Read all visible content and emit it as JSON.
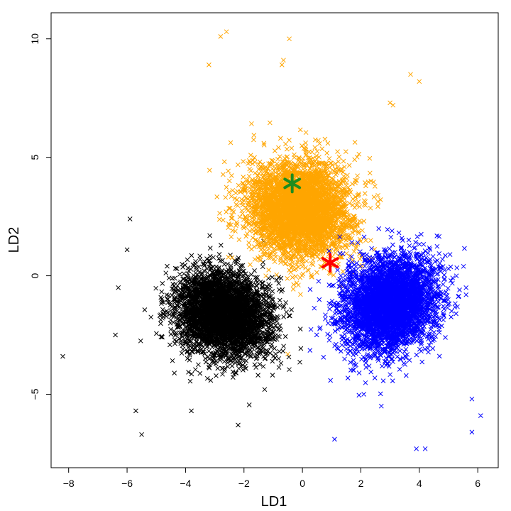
{
  "chart_data": {
    "type": "scatter",
    "marker": "x",
    "xlabel": "LD1",
    "ylabel": "LD2",
    "xlim": [
      -8.6,
      6.7
    ],
    "ylim": [
      -8.1,
      11.1
    ],
    "xticks": [
      -8,
      -6,
      -4,
      -2,
      0,
      2,
      4,
      6
    ],
    "yticks": [
      -5,
      0,
      5,
      10
    ],
    "grid": false,
    "legend": "none",
    "series": [
      {
        "color": "#000000",
        "points_per_cluster": 4200,
        "center": [
          -2.7,
          -1.6
        ],
        "spread": [
          0.75,
          0.9
        ],
        "rotation_deg": 30,
        "outliers": [
          [
            -8.2,
            -3.4
          ],
          [
            -5.9,
            2.4
          ],
          [
            -6.0,
            1.1
          ],
          [
            -6.3,
            -0.5
          ],
          [
            -5.5,
            -6.7
          ],
          [
            -6.4,
            -2.5
          ],
          [
            -5.7,
            -5.7
          ],
          [
            -2.2,
            -6.3
          ],
          [
            -3.8,
            -5.7
          ]
        ]
      },
      {
        "color": "#FFA500",
        "points_per_cluster": 4200,
        "center": [
          -0.1,
          2.8
        ],
        "spread": [
          0.85,
          1.0
        ],
        "rotation_deg": 10,
        "outliers": [
          [
            -2.8,
            10.1
          ],
          [
            -2.6,
            10.3
          ],
          [
            -0.45,
            10.0
          ],
          [
            -0.65,
            9.1
          ],
          [
            -0.7,
            8.9
          ],
          [
            -3.2,
            8.9
          ],
          [
            3.7,
            8.5
          ],
          [
            4.0,
            8.2
          ],
          [
            3.0,
            7.3
          ],
          [
            3.1,
            7.2
          ],
          [
            -0.5,
            -3.3
          ]
        ]
      },
      {
        "color": "#0000FF",
        "points_per_cluster": 4200,
        "center": [
          3.0,
          -1.2
        ],
        "spread": [
          0.75,
          1.0
        ],
        "rotation_deg": -20,
        "outliers": [
          [
            3.9,
            -7.3
          ],
          [
            4.2,
            -7.3
          ],
          [
            1.1,
            -6.9
          ],
          [
            5.8,
            -6.6
          ],
          [
            6.1,
            -5.9
          ],
          [
            5.8,
            -5.2
          ],
          [
            5.6,
            -0.8
          ],
          [
            5.6,
            -0.5
          ],
          [
            2.1,
            -5.0
          ],
          [
            2.7,
            -5.5
          ]
        ]
      }
    ],
    "annotations": [
      {
        "marker": "*",
        "x": -0.35,
        "y": 3.9,
        "color": "#1E8C1E"
      },
      {
        "marker": "*",
        "x": 0.95,
        "y": 0.55,
        "color": "#FF0000"
      }
    ]
  }
}
